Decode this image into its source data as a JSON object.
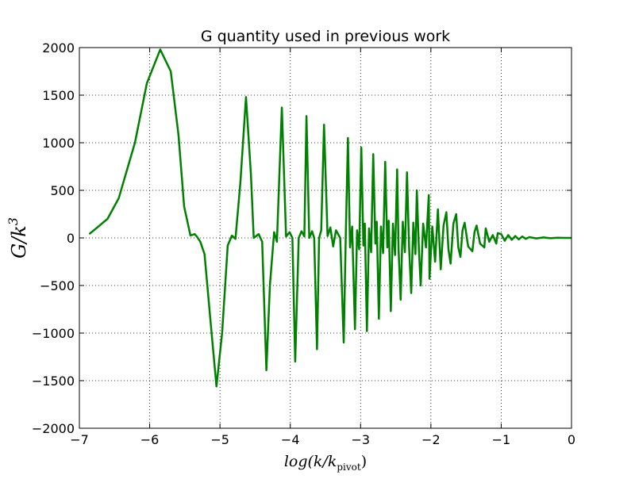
{
  "chart_data": {
    "type": "line",
    "title": "G quantity used in previous work",
    "xlabel": {
      "main": "log(k/k",
      "sub": "pivot",
      "end": ")"
    },
    "ylabel": {
      "main": "G/k",
      "sup": "3"
    },
    "xlim": [
      -7,
      0
    ],
    "ylim": [
      -2000,
      2000
    ],
    "xticks": [
      {
        "value": -7,
        "label": "−7"
      },
      {
        "value": -6,
        "label": "−6"
      },
      {
        "value": -5,
        "label": "−5"
      },
      {
        "value": -4,
        "label": "−4"
      },
      {
        "value": -3,
        "label": "−3"
      },
      {
        "value": -2,
        "label": "−2"
      },
      {
        "value": -1,
        "label": "−1"
      },
      0
    ],
    "yticks": [
      {
        "value": -2000,
        "label": "−2000"
      },
      {
        "value": -1500,
        "label": "−1500"
      },
      {
        "value": -1000,
        "label": "−1000"
      },
      {
        "value": -500,
        "label": "−500"
      },
      0,
      500,
      1000,
      1500,
      2000
    ],
    "grid": true,
    "series": [
      {
        "color": "#008000",
        "x": [
          -6.86,
          -6.6,
          -6.44,
          -6.21,
          -6.04,
          -5.85,
          -5.7,
          -5.59,
          -5.51,
          -5.42,
          -5.36,
          -5.33,
          -5.28,
          -5.22,
          -5.14,
          -5.05,
          -4.97,
          -4.89,
          -4.83,
          -4.78,
          -4.71,
          -4.63,
          -4.56,
          -4.52,
          -4.45,
          -4.4,
          -4.34,
          -4.29,
          -4.23,
          -4.19,
          -4.12,
          -4.06,
          -4.01,
          -3.97,
          -3.93,
          -3.88,
          -3.84,
          -3.8,
          -3.77,
          -3.73,
          -3.69,
          -3.66,
          -3.62,
          -3.59,
          -3.56,
          -3.52,
          -3.47,
          -3.43,
          -3.39,
          -3.35,
          -3.29,
          -3.24,
          -3.21,
          -3.18,
          -3.15,
          -3.12,
          -3.08,
          -3.05,
          -3.02,
          -2.99,
          -2.96,
          -2.94,
          -2.91,
          -2.88,
          -2.85,
          -2.82,
          -2.79,
          -2.77,
          -2.74,
          -2.71,
          -2.68,
          -2.65,
          -2.62,
          -2.6,
          -2.57,
          -2.54,
          -2.51,
          -2.48,
          -2.46,
          -2.43,
          -2.4,
          -2.37,
          -2.34,
          -2.31,
          -2.28,
          -2.25,
          -2.22,
          -2.2,
          -2.17,
          -2.145,
          -2.11,
          -2.07,
          -2.03,
          -2.02,
          -1.98,
          -1.94,
          -1.9,
          -1.86,
          -1.82,
          -1.78,
          -1.75,
          -1.72,
          -1.68,
          -1.64,
          -1.61,
          -1.58,
          -1.55,
          -1.52,
          -1.47,
          -1.41,
          -1.38,
          -1.35,
          -1.3,
          -1.24,
          -1.22,
          -1.17,
          -1.12,
          -1.07,
          -1.05,
          -1.0,
          -0.95,
          -0.9,
          -0.85,
          -0.8,
          -0.75,
          -0.7,
          -0.65,
          -0.6,
          -0.5,
          -0.4,
          -0.3,
          -0.2,
          -0.1,
          0
        ],
        "values": [
          40,
          200,
          417,
          1000,
          1625,
          1980,
          1750,
          1080,
          330,
          25,
          40,
          15,
          -40,
          -170,
          -830,
          -1560,
          -1000,
          -80,
          25,
          -10,
          580,
          1480,
          670,
          0,
          40,
          -40,
          -1390,
          -500,
          60,
          -40,
          1370,
          15,
          60,
          0,
          -1300,
          0,
          70,
          15,
          1280,
          0,
          70,
          0,
          -1170,
          0,
          80,
          1190,
          20,
          110,
          -90,
          80,
          0,
          -1100,
          50,
          1050,
          -100,
          120,
          -960,
          80,
          -120,
          950,
          -80,
          150,
          -980,
          100,
          -150,
          880,
          -60,
          170,
          -850,
          120,
          -160,
          800,
          -100,
          180,
          -770,
          150,
          -180,
          720,
          -120,
          -650,
          170,
          -150,
          690,
          -100,
          -580,
          160,
          -170,
          500,
          -130,
          -500,
          150,
          -100,
          450,
          -430,
          120,
          -250,
          300,
          -330,
          130,
          270,
          -120,
          -270,
          150,
          250,
          -100,
          -200,
          80,
          160,
          -90,
          -140,
          60,
          130,
          -60,
          -100,
          100,
          -40,
          30,
          -60,
          50,
          40,
          -30,
          30,
          -20,
          20,
          -15,
          15,
          -10,
          8,
          -5,
          5,
          -3,
          2,
          0,
          0
        ]
      }
    ]
  }
}
